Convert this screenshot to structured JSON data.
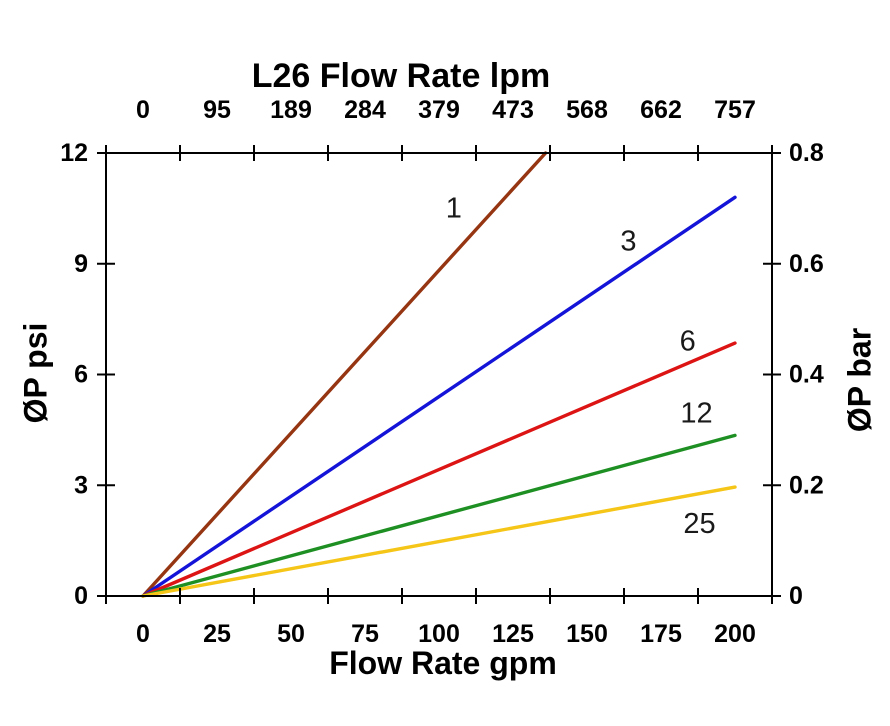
{
  "chart_data": {
    "type": "line",
    "title": "L26 Flow Rate lpm",
    "x_axis_bottom": {
      "label": "Flow Rate gpm",
      "tick_labels": [
        "0",
        "25",
        "50",
        "75",
        "100",
        "125",
        "150",
        "175",
        "200"
      ],
      "range_gpm": [
        -12.5,
        212.5
      ]
    },
    "x_axis_top": {
      "tick_labels": [
        "0",
        "95",
        "189",
        "284",
        "379",
        "473",
        "568",
        "662",
        "757"
      ],
      "units": "lpm"
    },
    "y_axis_left": {
      "label": "ØP psi",
      "tick_values_psi": [
        0,
        3,
        6,
        9,
        12
      ],
      "tick_labels": [
        "0",
        "3",
        "6",
        "9",
        "12"
      ],
      "range_psi": [
        0,
        12
      ]
    },
    "y_axis_right": {
      "label": "ØP bar",
      "tick_labels": [
        "0",
        "0.2",
        "0.4",
        "0.6",
        "0.8"
      ]
    },
    "grid": false,
    "legend": "inline-line-labels",
    "series": [
      {
        "name": "1",
        "color": "#953511",
        "points_gpm_psi": [
          [
            0,
            0
          ],
          [
            136,
            12
          ]
        ],
        "label_at_gpm_psi": [
          105,
          10.5
        ]
      },
      {
        "name": "3",
        "color": "#1414D8",
        "points_gpm_psi": [
          [
            0,
            0
          ],
          [
            200,
            10.8
          ]
        ],
        "label_at_gpm_psi": [
          164,
          9.6
        ]
      },
      {
        "name": "6",
        "color": "#DD1414",
        "points_gpm_psi": [
          [
            0,
            0
          ],
          [
            200,
            6.85
          ]
        ],
        "label_at_gpm_psi": [
          184,
          6.9
        ]
      },
      {
        "name": "12",
        "color": "#1E9023",
        "points_gpm_psi": [
          [
            0,
            0
          ],
          [
            200,
            4.35
          ]
        ],
        "label_at_gpm_psi": [
          187,
          4.95
        ]
      },
      {
        "name": "25",
        "color": "#F5C518",
        "points_gpm_psi": [
          [
            0,
            0
          ],
          [
            200,
            2.95
          ]
        ],
        "label_at_gpm_psi": [
          188,
          1.95
        ]
      }
    ],
    "axis_color": "#000000"
  }
}
